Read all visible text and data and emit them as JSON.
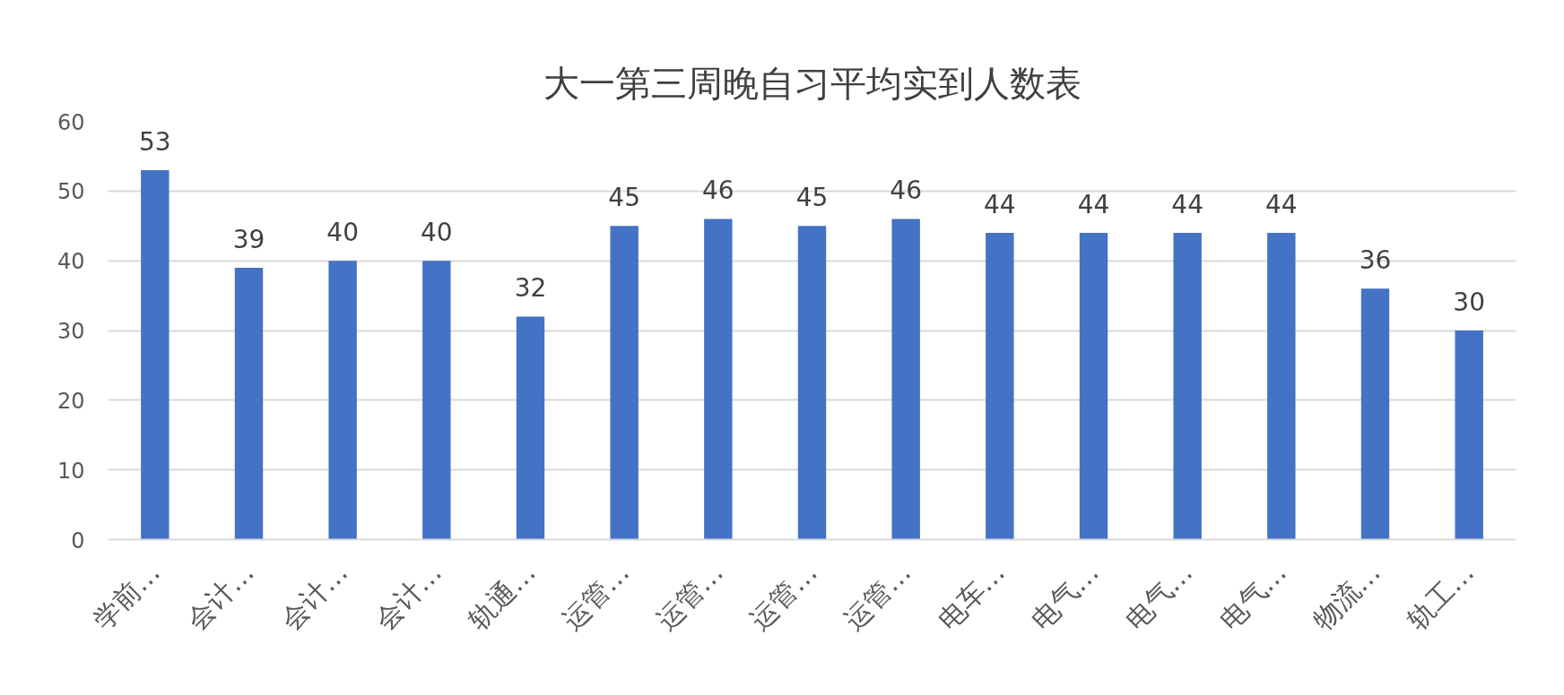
{
  "chart_data": {
    "type": "bar",
    "title": "大一第三周晚自习平均实到人数表",
    "categories": [
      "学前…",
      "会计…",
      "会计…",
      "会计…",
      "轨通…",
      "运管…",
      "运管…",
      "运管…",
      "运管…",
      "电车…",
      "电气…",
      "电气…",
      "电气…",
      "物流…",
      "轨工…"
    ],
    "values": [
      53,
      39,
      40,
      40,
      32,
      45,
      46,
      45,
      46,
      44,
      44,
      44,
      44,
      36,
      30
    ],
    "color": "#4472c4",
    "ylim": [
      0,
      60
    ],
    "yticks": [
      0,
      10,
      20,
      30,
      40,
      50,
      60
    ],
    "grid": "y",
    "data_labels": true
  }
}
